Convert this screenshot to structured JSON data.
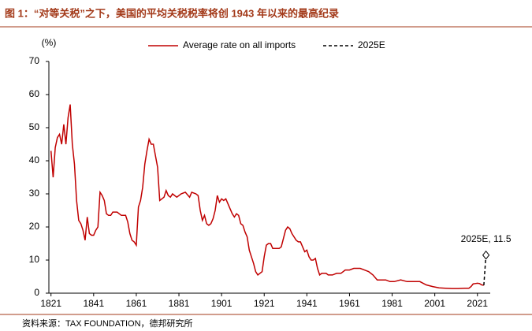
{
  "chart_data": {
    "type": "line",
    "title": "图 1：“对等关税”之下，美国的平均关税税率将创 1943 年以来的最高纪录",
    "y_label": "(%)",
    "source": "资料来源：TAX FOUNDATION，德邦研究所",
    "xlim": [
      1820,
      2027
    ],
    "xticks": [
      1821,
      1841,
      1861,
      1881,
      1901,
      1921,
      1941,
      1961,
      1981,
      2001,
      2021
    ],
    "ylim": [
      0,
      70
    ],
    "yticks": [
      0,
      10,
      20,
      30,
      40,
      50,
      60,
      70
    ],
    "legend": "top",
    "series": [
      {
        "name": "Average rate on all imports",
        "color": "#c00000",
        "style": "solid",
        "x": [
          1821,
          1822,
          1823,
          1824,
          1825,
          1826,
          1827,
          1828,
          1829,
          1830,
          1831,
          1832,
          1833,
          1834,
          1835,
          1836,
          1837,
          1838,
          1839,
          1840,
          1841,
          1842,
          1843,
          1844,
          1845,
          1846,
          1847,
          1848,
          1849,
          1850,
          1852,
          1854,
          1856,
          1857,
          1858,
          1859,
          1860,
          1861,
          1862,
          1863,
          1864,
          1865,
          1866,
          1867,
          1868,
          1869,
          1870,
          1871,
          1872,
          1873,
          1874,
          1875,
          1876,
          1877,
          1878,
          1879,
          1880,
          1882,
          1884,
          1886,
          1887,
          1889,
          1890,
          1891,
          1892,
          1893,
          1894,
          1895,
          1896,
          1897,
          1898,
          1899,
          1900,
          1901,
          1902,
          1903,
          1905,
          1906,
          1907,
          1908,
          1909,
          1910,
          1911,
          1912,
          1913,
          1914,
          1915,
          1916,
          1917,
          1918,
          1919,
          1920,
          1921,
          1922,
          1923,
          1924,
          1925,
          1926,
          1927,
          1928,
          1929,
          1930,
          1931,
          1932,
          1933,
          1934,
          1935,
          1936,
          1937,
          1938,
          1939,
          1940,
          1941,
          1942,
          1943,
          1944,
          1945,
          1946,
          1947,
          1948,
          1950,
          1951,
          1953,
          1955,
          1957,
          1959,
          1961,
          1963,
          1966,
          1968,
          1970,
          1972,
          1974,
          1976,
          1978,
          1980,
          1982,
          1985,
          1988,
          1991,
          1994,
          1997,
          2000,
          2003,
          2006,
          2009,
          2012,
          2015,
          2017,
          2018,
          2019,
          2020,
          2021,
          2022,
          2023,
          2024
        ],
        "values": [
          43,
          35,
          44,
          47,
          48,
          45,
          51,
          45,
          53,
          57,
          45,
          39,
          28,
          22,
          21,
          19,
          16,
          23,
          18,
          17.5,
          17.5,
          19,
          20,
          30.5,
          29.5,
          28,
          24,
          23.5,
          23.5,
          24.5,
          24.5,
          23.5,
          23.5,
          21.5,
          18,
          16,
          15.5,
          14.5,
          26,
          28,
          32,
          39,
          43,
          46.5,
          45,
          45,
          41.5,
          38,
          28,
          28.5,
          29,
          31,
          29.5,
          29,
          30,
          29.5,
          29,
          30,
          30.5,
          29,
          30.5,
          30,
          29.5,
          25,
          22,
          23.5,
          21,
          20.5,
          21,
          22.5,
          25,
          29.5,
          27.5,
          28.5,
          28,
          28.5,
          25.5,
          24,
          23,
          24,
          23.5,
          21,
          20.5,
          18.5,
          17,
          13,
          11,
          9,
          6.5,
          5.5,
          6,
          6.5,
          11,
          14.5,
          15,
          15,
          13.5,
          13.5,
          13.5,
          13.5,
          14,
          16.5,
          19,
          20,
          19.5,
          18,
          17,
          16,
          15.5,
          15.5,
          14,
          12.5,
          13,
          11,
          10,
          10,
          10.5,
          7.5,
          5.5,
          6,
          6,
          5.5,
          5.5,
          6,
          6,
          7,
          7,
          7.5,
          7.5,
          7,
          6.5,
          5.5,
          4,
          4,
          4,
          3.5,
          3.5,
          4,
          3.5,
          3.5,
          3.5,
          2.5,
          2,
          1.6,
          1.5,
          1.4,
          1.4,
          1.5,
          1.5,
          2,
          2.8,
          2.9,
          3,
          2.9,
          2.5,
          2.4
        ]
      },
      {
        "name": "2025E",
        "color": "#000000",
        "style": "dashed",
        "x": [
          2024,
          2025
        ],
        "values": [
          2.4,
          11.5
        ],
        "value_labels": [
          null,
          "2025E, 11.5"
        ]
      }
    ]
  }
}
